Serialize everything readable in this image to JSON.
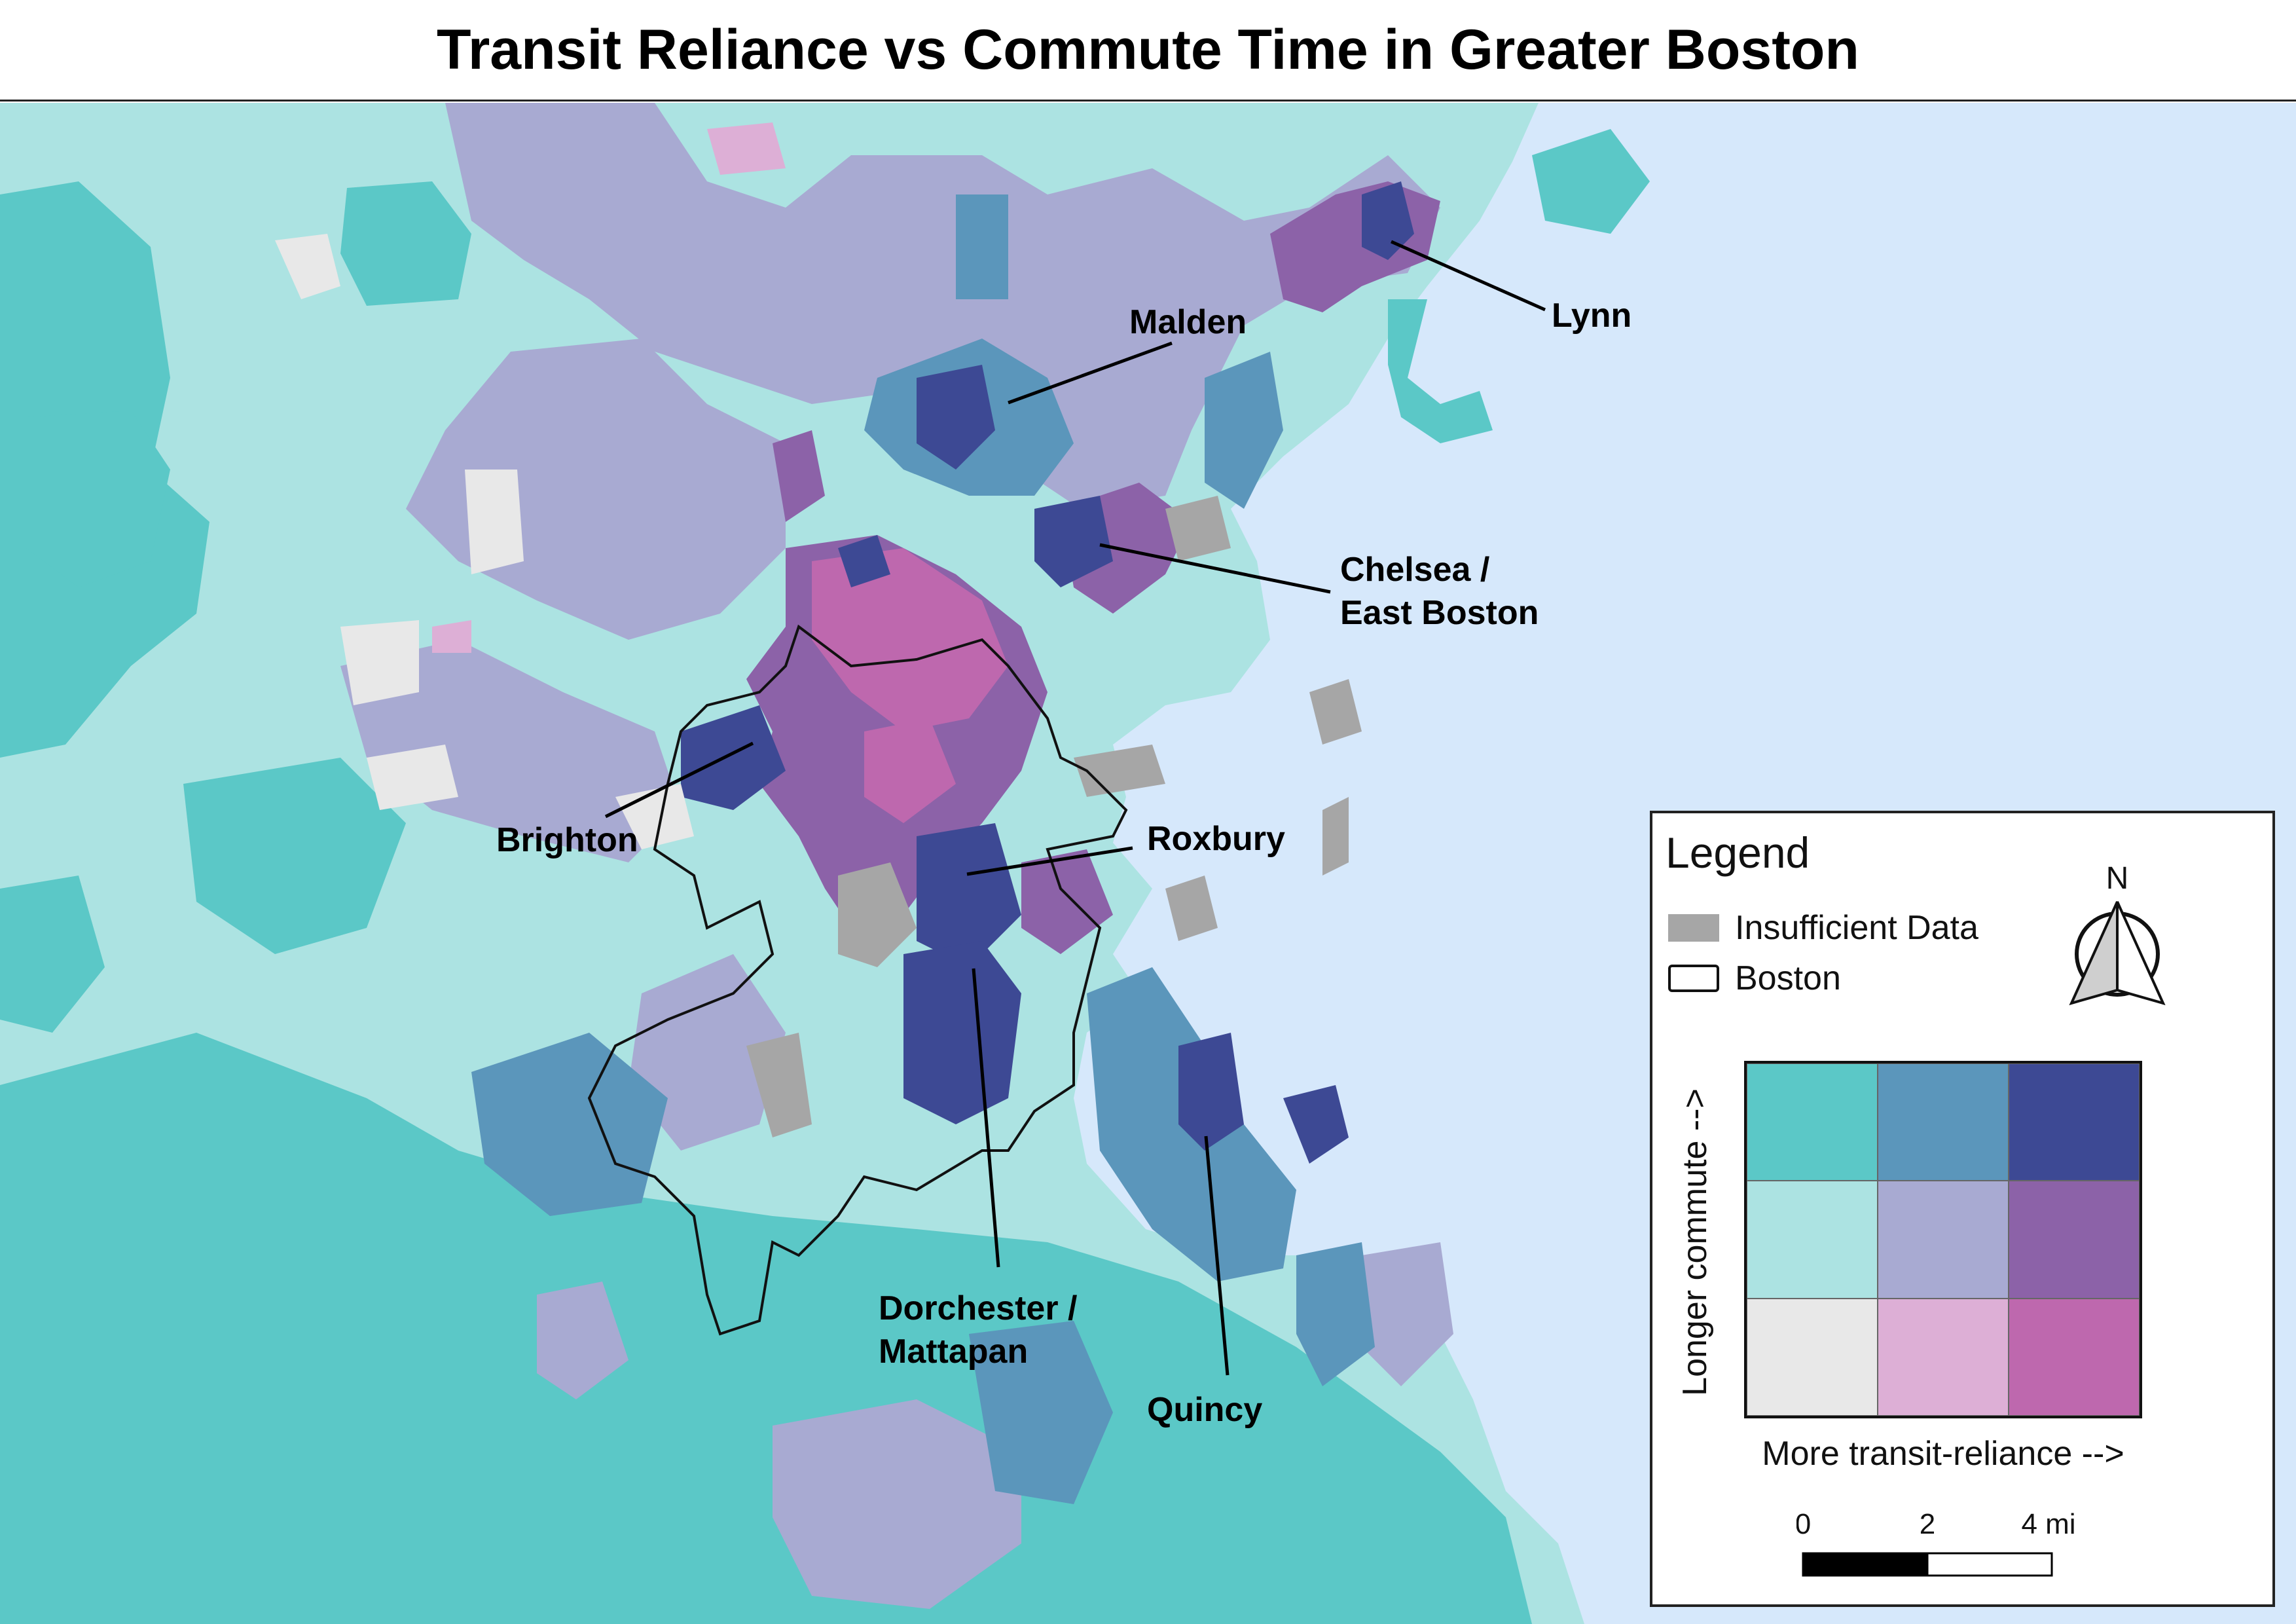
{
  "title": "Transit Reliance vs Commute Time in Greater Boston",
  "colors": {
    "background_light": "#ace3e2",
    "water": "#d6e8fb",
    "teal": "#5bc8c7",
    "steel_blue": "#5b96bb",
    "navy": "#3d4994",
    "lavender": "#a8aad2",
    "purple": "#8c62a8",
    "light_gray": "#e8e8e8",
    "pink_light": "#ddafd6",
    "magenta": "#be68ae",
    "insufficient_gray": "#a6a6a6"
  },
  "callouts": [
    {
      "id": "lynn",
      "label": "Lynn"
    },
    {
      "id": "malden",
      "label": "Malden"
    },
    {
      "id": "chelsea",
      "label": "Chelsea /",
      "label2": "East Boston"
    },
    {
      "id": "brighton",
      "label": "Brighton"
    },
    {
      "id": "roxbury",
      "label": "Roxbury"
    },
    {
      "id": "dorchester",
      "label": "Dorchester /",
      "label2": "Mattapan"
    },
    {
      "id": "quincy",
      "label": "Quincy"
    }
  ],
  "legend": {
    "title": "Legend",
    "items": [
      {
        "label": "Insufficient Data",
        "swatch": "#a6a6a6"
      },
      {
        "label": "Boston",
        "swatch": "outline"
      }
    ],
    "north_label": "N",
    "bivariate": {
      "y_label": "Longer commute -->",
      "x_label": "More transit-reliance -->",
      "cells": [
        [
          "#5bc8c7",
          "#5b96bb",
          "#3d4994"
        ],
        [
          "#ace3e2",
          "#a8aad2",
          "#8c62a8"
        ],
        [
          "#e8e8e8",
          "#ddafd6",
          "#be68ae"
        ]
      ]
    },
    "scale": {
      "ticks": [
        "0",
        "2",
        "4 mi"
      ]
    }
  }
}
